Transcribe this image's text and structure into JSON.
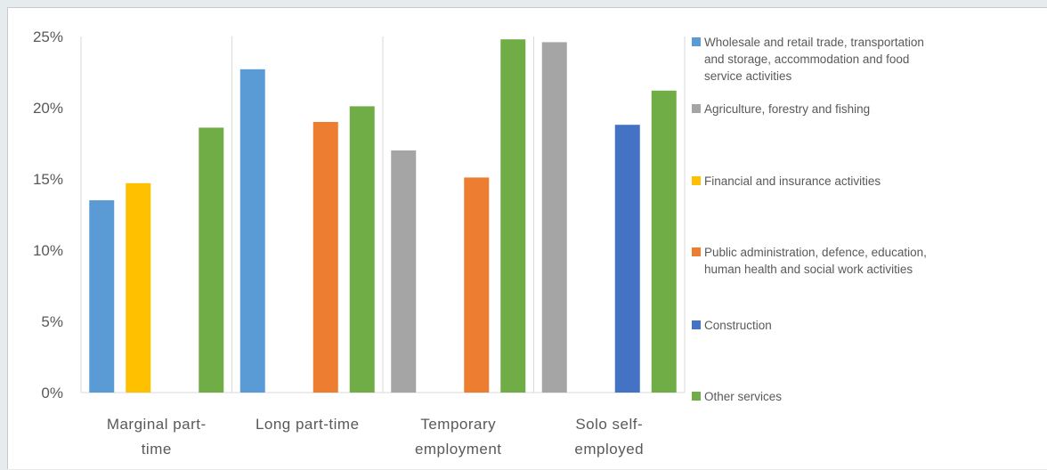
{
  "chart_data": {
    "type": "bar",
    "categories": [
      [
        "Marginal part-",
        "time"
      ],
      [
        "Long part-time"
      ],
      [
        "Temporary",
        "employment"
      ],
      [
        "Solo self-",
        "employed"
      ]
    ],
    "ylim": [
      0,
      25
    ],
    "yticks": [
      0,
      5,
      10,
      15,
      20,
      25
    ],
    "ytick_labels": [
      "0%",
      "5%",
      "10%",
      "15%",
      "20%",
      "25%"
    ],
    "grid": "vertical category separators",
    "legend_position": "right",
    "series": [
      {
        "name": "Wholesale and retail trade, transportation and storage, accommodation and food service activities",
        "legend_lines": [
          "Wholesale and retail trade, transportation",
          "and storage, accommodation and food",
          "service activities"
        ],
        "color": "#5b9bd5",
        "values": [
          13.5,
          22.7,
          null,
          null
        ]
      },
      {
        "name": "Agriculture, forestry and fishing",
        "legend_lines": [
          "Agriculture, forestry and fishing"
        ],
        "color": "#a5a5a5",
        "values": [
          null,
          null,
          17.0,
          24.6
        ]
      },
      {
        "name": "Financial and insurance activities",
        "legend_lines": [
          "Financial and insurance activities"
        ],
        "color": "#ffc000",
        "values": [
          14.7,
          null,
          null,
          null
        ]
      },
      {
        "name": "Public administration, defence, education, human health and social work activities",
        "legend_lines": [
          "Public administration, defence, education,",
          "human health and social work activities"
        ],
        "color": "#ed7d31",
        "values": [
          null,
          19.0,
          15.1,
          null
        ]
      },
      {
        "name": "Construction",
        "legend_lines": [
          "Construction"
        ],
        "color": "#4472c4",
        "values": [
          null,
          null,
          null,
          18.8
        ]
      },
      {
        "name": "Other services",
        "legend_lines": [
          "Other services"
        ],
        "color": "#70ad47",
        "values": [
          18.6,
          20.1,
          24.8,
          21.2
        ]
      }
    ]
  }
}
